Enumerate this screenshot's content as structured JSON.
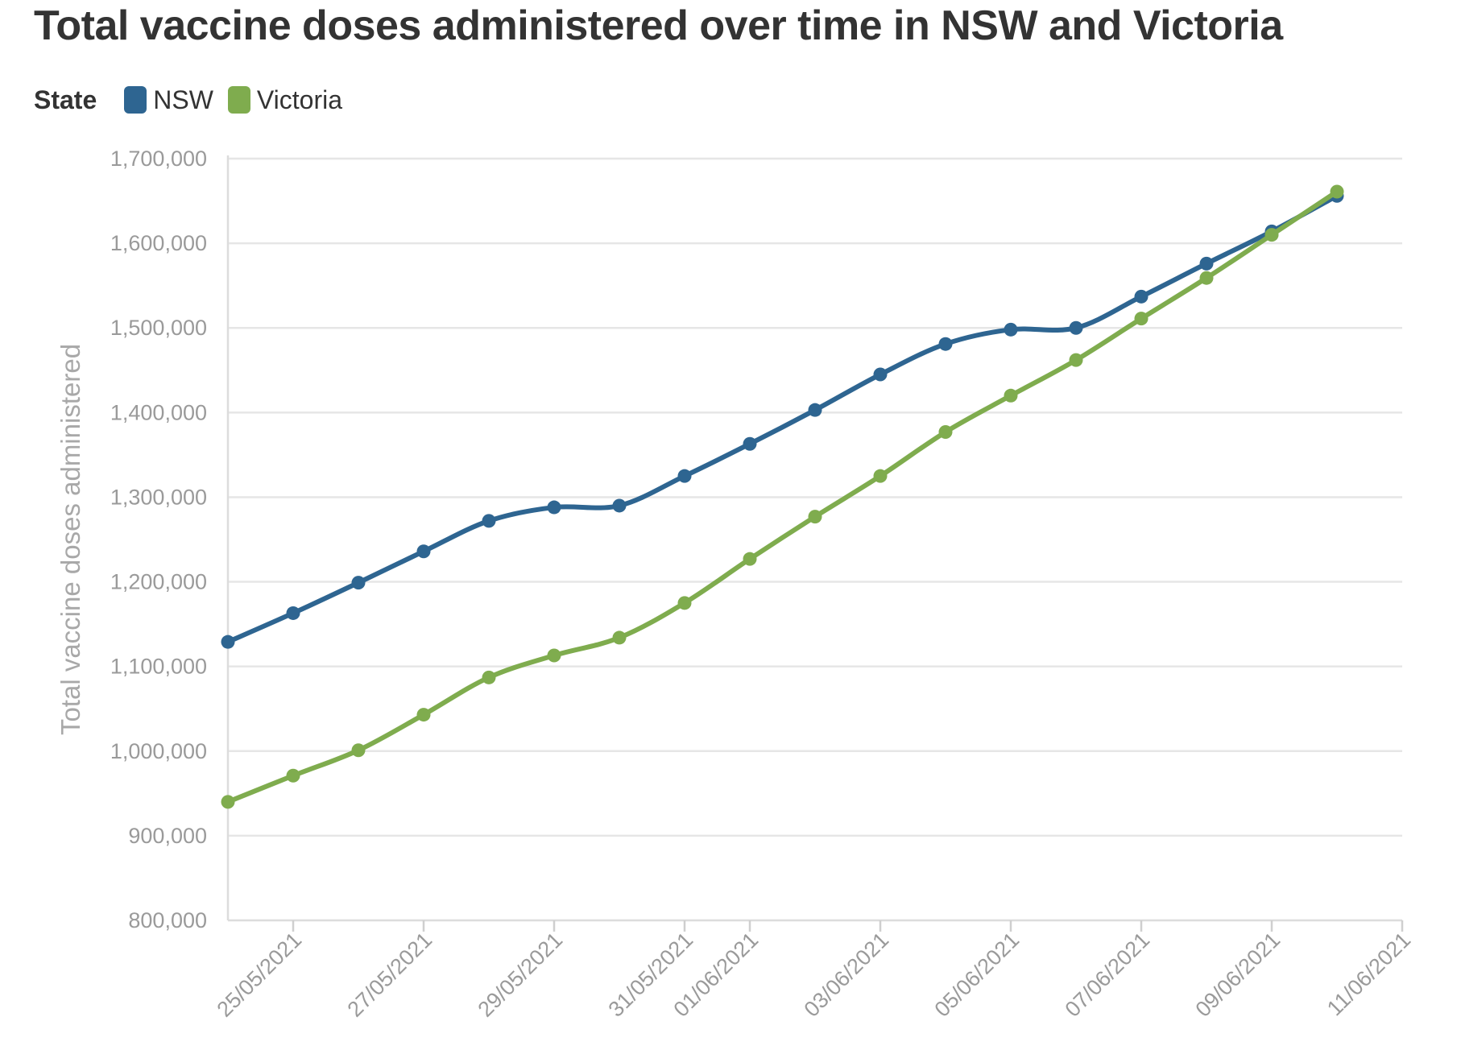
{
  "chart_data": {
    "type": "line",
    "title": "Total vaccine doses administered over time in NSW and Victoria",
    "legend": {
      "title": "State",
      "placement": "top-left"
    },
    "xlabel": "",
    "ylabel": "Total vaccine doses administered",
    "ylim": [
      800000,
      1700000
    ],
    "y_ticks": [
      800000,
      900000,
      1000000,
      1100000,
      1200000,
      1300000,
      1400000,
      1500000,
      1600000,
      1700000
    ],
    "y_tick_labels": [
      "800,000",
      "900,000",
      "1,000,000",
      "1,100,000",
      "1,200,000",
      "1,300,000",
      "1,400,000",
      "1,500,000",
      "1,600,000",
      "1,700,000"
    ],
    "xlim": [
      "2021-05-24",
      "2021-06-11"
    ],
    "x_ticks": [
      "2021-05-25",
      "2021-05-27",
      "2021-05-29",
      "2021-05-31",
      "2021-06-01",
      "2021-06-03",
      "2021-06-05",
      "2021-06-07",
      "2021-06-09",
      "2021-06-11"
    ],
    "x_tick_labels": [
      "25/05/2021",
      "27/05/2021",
      "29/05/2021",
      "31/05/2021",
      "01/06/2021",
      "03/06/2021",
      "05/06/2021",
      "07/06/2021",
      "09/06/2021",
      "11/06/2021"
    ],
    "grid": true,
    "x": [
      "2021-05-24",
      "2021-05-25",
      "2021-05-26",
      "2021-05-27",
      "2021-05-28",
      "2021-05-29",
      "2021-05-30",
      "2021-05-31",
      "2021-06-01",
      "2021-06-02",
      "2021-06-03",
      "2021-06-04",
      "2021-06-05",
      "2021-06-06",
      "2021-06-07",
      "2021-06-08",
      "2021-06-09",
      "2021-06-10"
    ],
    "series": [
      {
        "name": "NSW",
        "color": "#2e6591",
        "values": [
          1129000,
          1163000,
          1199000,
          1236000,
          1272000,
          1288000,
          1290000,
          1325000,
          1363000,
          1403000,
          1445000,
          1481000,
          1498000,
          1500000,
          1537000,
          1576000,
          1614000,
          1656000
        ]
      },
      {
        "name": "Victoria",
        "color": "#7fac4e",
        "values": [
          940000,
          971000,
          1001000,
          1043000,
          1087000,
          1113000,
          1134000,
          1175000,
          1227000,
          1277000,
          1325000,
          1377000,
          1420000,
          1462000,
          1511000,
          1559000,
          1610000,
          1661000
        ]
      }
    ]
  }
}
